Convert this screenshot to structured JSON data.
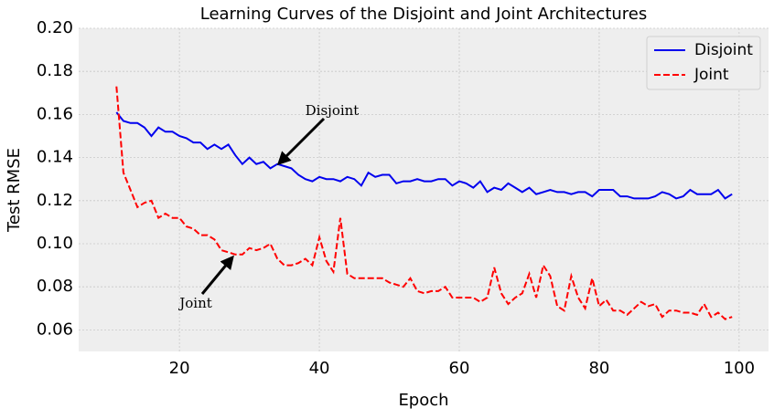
{
  "chart_data": {
    "type": "line",
    "title": "Learning Curves of the Disjoint and Joint Architectures",
    "xlabel": "Epoch",
    "ylabel": "Test RMSE",
    "x": [
      11,
      12,
      13,
      14,
      15,
      16,
      17,
      18,
      19,
      20,
      21,
      22,
      23,
      24,
      25,
      26,
      27,
      28,
      29,
      30,
      31,
      32,
      33,
      34,
      35,
      36,
      37,
      38,
      39,
      40,
      41,
      42,
      43,
      44,
      45,
      46,
      47,
      48,
      49,
      50,
      51,
      52,
      53,
      54,
      55,
      56,
      57,
      58,
      59,
      60,
      61,
      62,
      63,
      64,
      65,
      66,
      67,
      68,
      69,
      70,
      71,
      72,
      73,
      74,
      75,
      76,
      77,
      78,
      79,
      80,
      81,
      82,
      83,
      84,
      85,
      86,
      87,
      88,
      89,
      90,
      91,
      92,
      93,
      94,
      95,
      96,
      97,
      98,
      99
    ],
    "series": [
      {
        "name": "Disjoint",
        "color": "#0000ee",
        "dash": false,
        "values": [
          0.161,
          0.157,
          0.156,
          0.156,
          0.154,
          0.15,
          0.154,
          0.152,
          0.152,
          0.15,
          0.149,
          0.147,
          0.147,
          0.144,
          0.146,
          0.144,
          0.146,
          0.141,
          0.137,
          0.14,
          0.137,
          0.138,
          0.135,
          0.137,
          0.136,
          0.135,
          0.132,
          0.13,
          0.129,
          0.131,
          0.13,
          0.13,
          0.129,
          0.131,
          0.13,
          0.127,
          0.133,
          0.131,
          0.132,
          0.132,
          0.128,
          0.129,
          0.129,
          0.13,
          0.129,
          0.129,
          0.13,
          0.13,
          0.127,
          0.129,
          0.128,
          0.126,
          0.129,
          0.124,
          0.126,
          0.125,
          0.128,
          0.126,
          0.124,
          0.126,
          0.123,
          0.124,
          0.125,
          0.124,
          0.124,
          0.123,
          0.124,
          0.124,
          0.122,
          0.125,
          0.125,
          0.125,
          0.122,
          0.122,
          0.121,
          0.121,
          0.121,
          0.122,
          0.124,
          0.123,
          0.121,
          0.122,
          0.125,
          0.123,
          0.123,
          0.123,
          0.125,
          0.121,
          0.123
        ]
      },
      {
        "name": "Joint",
        "color": "#ff0000",
        "dash": true,
        "values": [
          0.173,
          0.133,
          0.125,
          0.117,
          0.119,
          0.12,
          0.112,
          0.114,
          0.112,
          0.112,
          0.108,
          0.107,
          0.104,
          0.104,
          0.102,
          0.097,
          0.096,
          0.095,
          0.095,
          0.098,
          0.097,
          0.098,
          0.1,
          0.093,
          0.09,
          0.09,
          0.091,
          0.093,
          0.09,
          0.103,
          0.092,
          0.087,
          0.112,
          0.086,
          0.084,
          0.084,
          0.084,
          0.084,
          0.084,
          0.082,
          0.081,
          0.08,
          0.084,
          0.078,
          0.077,
          0.078,
          0.078,
          0.08,
          0.075,
          0.075,
          0.075,
          0.075,
          0.073,
          0.075,
          0.089,
          0.077,
          0.072,
          0.075,
          0.077,
          0.086,
          0.075,
          0.09,
          0.085,
          0.071,
          0.069,
          0.085,
          0.075,
          0.07,
          0.084,
          0.071,
          0.074,
          0.069,
          0.069,
          0.067,
          0.07,
          0.073,
          0.071,
          0.072,
          0.066,
          0.069,
          0.069,
          0.068,
          0.068,
          0.067,
          0.072,
          0.066,
          0.068,
          0.065,
          0.066
        ]
      }
    ],
    "annotations": [
      {
        "text": "Disjoint"
      },
      {
        "text": "Joint"
      }
    ],
    "xlim": [
      5.6,
      104.2
    ],
    "ylim": [
      0.05,
      0.2
    ],
    "xticks": [
      20,
      40,
      60,
      80,
      100
    ],
    "yticks": [
      0.06,
      0.08,
      {
        "value": 0.1,
        "label": "0.10"
      },
      0.12,
      0.14,
      0.16,
      0.18,
      {
        "value": 0.2,
        "label": "0.20"
      }
    ],
    "grid": true,
    "legend": "upper right"
  }
}
